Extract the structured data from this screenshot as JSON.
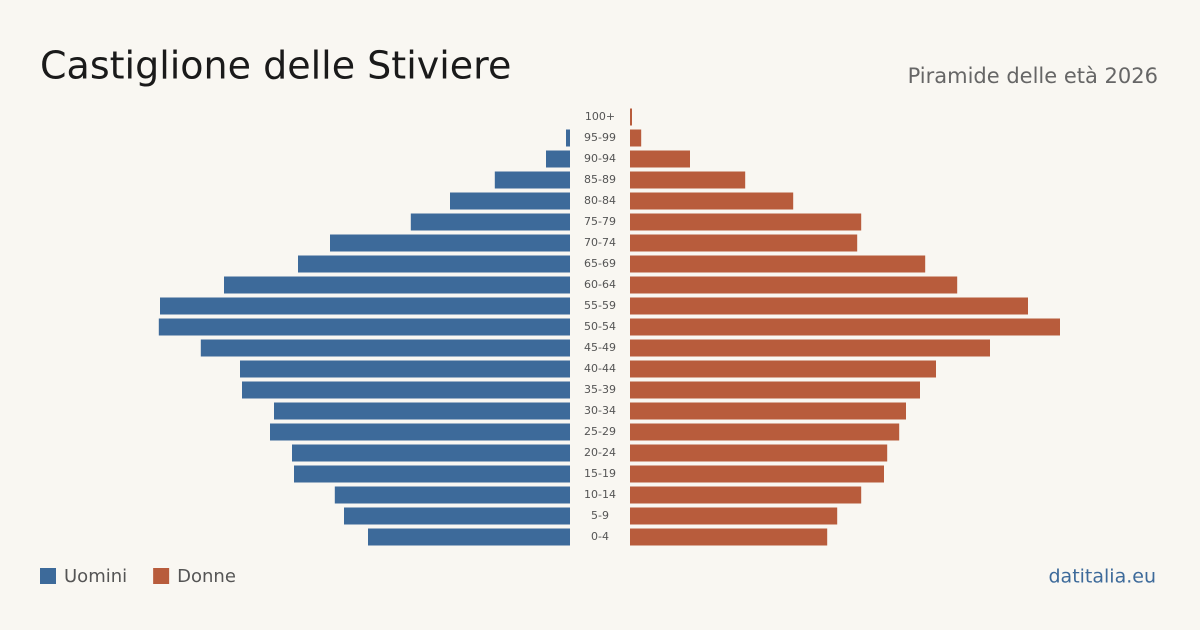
{
  "chart_data": {
    "type": "pyramid",
    "title": "Castiglione delle Stiviere",
    "subtitle": "Piramide delle età 2026",
    "source": "datitalia.eu",
    "categories": [
      "0-4",
      "5-9",
      "10-14",
      "15-19",
      "20-24",
      "25-29",
      "30-34",
      "35-39",
      "40-44",
      "45-49",
      "50-54",
      "55-59",
      "60-64",
      "65-69",
      "70-74",
      "75-79",
      "80-84",
      "85-89",
      "90-94",
      "95-99",
      "100+"
    ],
    "series": [
      {
        "name": "Uomini",
        "color": "#3d6a9a",
        "values": [
          505,
          565,
          588,
          690,
          695,
          750,
          740,
          820,
          825,
          923,
          1028,
          1025,
          865,
          680,
          600,
          398,
          300,
          188,
          60,
          10,
          0
        ]
      },
      {
        "name": "Donne",
        "color": "#b85c3c",
        "values": [
          493,
          518,
          578,
          635,
          643,
          673,
          690,
          725,
          765,
          900,
          1075,
          995,
          818,
          738,
          568,
          578,
          408,
          288,
          150,
          28,
          5
        ]
      }
    ]
  }
}
